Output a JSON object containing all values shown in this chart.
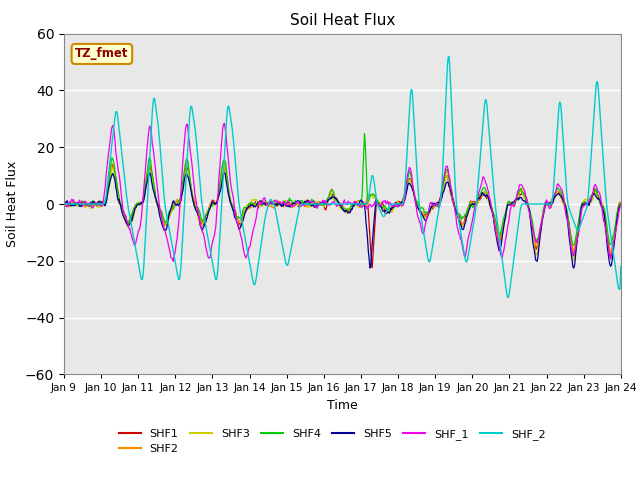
{
  "title": "Soil Heat Flux",
  "xlabel": "Time",
  "ylabel": "Soil Heat Flux",
  "ylim": [
    -60,
    60
  ],
  "yticks": [
    -60,
    -40,
    -20,
    0,
    20,
    40,
    60
  ],
  "x_tick_labels": [
    "Jan 9",
    "Jan 10",
    "Jan 11",
    "Jan 12",
    "Jan 13",
    "Jan 14",
    "Jan 15",
    "Jan 16",
    "Jan 17",
    "Jan 18",
    "Jan 19",
    "Jan 20",
    "Jan 21",
    "Jan 22",
    "Jan 23",
    "Jan 24"
  ],
  "series_colors": {
    "SHF1": "#cc0000",
    "SHF2": "#ff8800",
    "SHF3": "#cccc00",
    "SHF4": "#00cc00",
    "SHF5": "#000099",
    "SHF_1": "#ee00ee",
    "SHF_2": "#00cccc"
  },
  "bg_color": "#e8e8e8",
  "annotation_text": "TZ_fmet",
  "annotation_color": "#8b0000",
  "annotation_bg": "#ffffcc",
  "annotation_border": "#cc8800",
  "legend_ncol_row1": 6,
  "title_fontsize": 11
}
